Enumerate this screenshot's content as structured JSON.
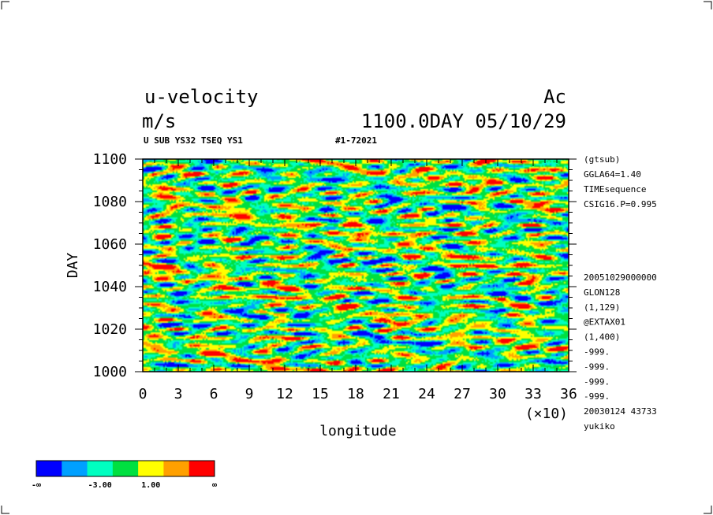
{
  "header": {
    "variable": "u-velocity",
    "units": "m/s",
    "experiment_code": "Ac",
    "time_label": "1100.0DAY 05/10/29",
    "dataset_line": "U SUB YS32 TSEQ YS1",
    "run_id": "#1-72021"
  },
  "side_info": {
    "top": [
      "(gtsub)",
      "GGLA64=1.40",
      "TIMEsequence",
      "CSIG16.P=0.995"
    ],
    "bottom": [
      "20051029000000",
      "GLON128",
      "(1,129)",
      "@EXTAX01",
      "(1,400)",
      "-999.",
      "-999.",
      "-999.",
      "-999.",
      "20030124  43733",
      "yukiko"
    ]
  },
  "legend": {
    "labels": [
      "-∞",
      "-3.00",
      "1.00",
      "∞"
    ],
    "colors": [
      "#0000ff",
      "#00a0ff",
      "#00ffc0",
      "#00e040",
      "#ffff00",
      "#ffa000",
      "#ff0000"
    ]
  },
  "chart_data": {
    "type": "heatmap",
    "title": "u-velocity",
    "xlabel": "longitude",
    "x_multiplier": "(×10)",
    "ylabel": "DAY",
    "xlim": [
      0,
      36
    ],
    "ylim": [
      1000,
      1100
    ],
    "x_ticks": [
      "0",
      "3",
      "6",
      "9",
      "12",
      "15",
      "18",
      "21",
      "24",
      "27",
      "30",
      "33",
      "36"
    ],
    "y_ticks": [
      "1000",
      "1020",
      "1040",
      "1060",
      "1080",
      "1100"
    ],
    "color_levels": [
      "-∞",
      "-3.00",
      "1.00",
      "∞"
    ],
    "colors": [
      "#0000ff",
      "#00a0ff",
      "#00ffc0",
      "#00e040",
      "#ffff00",
      "#ffa000",
      "#ff0000"
    ]
  }
}
